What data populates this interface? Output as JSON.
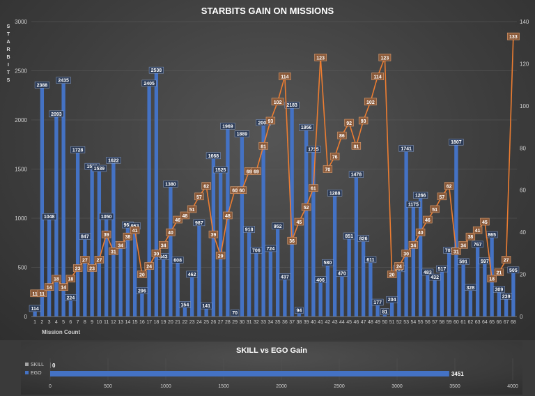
{
  "chart_data": [
    {
      "type": "bar",
      "title": "STARBITS GAIN ON MISSIONS",
      "ylabel": "STARBITS",
      "xlabel": "Mission Count",
      "ylim": [
        0,
        3000
      ],
      "y2lim": [
        0,
        140
      ],
      "yticks": [
        0,
        500,
        1000,
        1500,
        2000,
        2500,
        3000
      ],
      "y2ticks": [
        0,
        20,
        40,
        60,
        80,
        100,
        120,
        140
      ],
      "categories": [
        "1",
        "2",
        "3",
        "4",
        "5",
        "6",
        "7",
        "8",
        "9",
        "10",
        "11",
        "12",
        "13",
        "14",
        "15",
        "16",
        "17",
        "18",
        "19",
        "20",
        "21",
        "22",
        "23",
        "24",
        "25",
        "26",
        "27",
        "28",
        "29",
        "30",
        "31",
        "32",
        "33",
        "34",
        "35",
        "36",
        "37",
        "38",
        "39",
        "40",
        "41",
        "42",
        "43",
        "44",
        "45",
        "46",
        "47",
        "48",
        "49",
        "50",
        "51",
        "52",
        "53",
        "54",
        "55",
        "56",
        "57",
        "58",
        "59",
        "60",
        "61",
        "62",
        "63",
        "64",
        "65",
        "66",
        "67",
        "68"
      ],
      "series": [
        {
          "type": "bar",
          "axis": "left",
          "color": "#4472c4",
          "values": [
            114,
            2388,
            1048,
            2093,
            2435,
            224,
            1728,
            847,
            1559,
            1539,
            1050,
            1622,
            760,
            964,
            953,
            296,
            2405,
            2538,
            643,
            1380,
            608,
            154,
            462,
            987,
            141,
            1668,
            1525,
            1969,
            70,
            1889,
            918,
            706,
            2004,
            724,
            952,
            437,
            2183,
            94,
            1956,
            1735,
            406,
            580,
            1288,
            470,
            851,
            1478,
            826,
            611,
            177,
            81,
            204,
            519,
            1741,
            1175,
            1266,
            483,
            432,
            517,
            707,
            1807,
            591,
            328,
            767,
            597,
            865,
            309,
            239,
            505
          ],
          "labels": [
            "114",
            "2388",
            "1048",
            "2093",
            "2435",
            "224",
            "1728",
            "847",
            "1559",
            "1539",
            "1050",
            "1622",
            "760",
            "964",
            "953",
            "296",
            "2405",
            "2538",
            "643",
            "1380",
            "608",
            "154",
            "462",
            "987",
            "141",
            "1668",
            "1525",
            "1969",
            "70",
            "1889",
            "918",
            "706",
            "2004",
            "724",
            "952",
            "437",
            "2183",
            "94",
            "1956",
            "1735",
            "406",
            "580",
            "1288",
            "470",
            "851",
            "1478",
            "826",
            "611",
            "177",
            "81",
            "204",
            "519",
            "1741",
            "1175",
            "1266",
            "483",
            "432",
            "517",
            "707",
            "1807",
            "591",
            "328",
            "767",
            "597",
            "865",
            "309",
            "239",
            "505"
          ]
        },
        {
          "type": "line",
          "axis": "right",
          "color": "#ed7d31",
          "values": [
            11,
            11,
            14,
            18,
            14,
            18,
            23,
            27,
            23,
            27,
            39,
            31,
            34,
            38,
            41,
            20,
            24,
            30,
            34,
            40,
            46,
            48,
            51,
            57,
            62,
            39,
            29,
            48,
            60,
            60,
            69,
            69,
            81,
            93,
            102,
            114,
            36,
            45,
            52,
            61,
            123,
            70,
            76,
            86,
            92,
            81,
            93,
            102,
            114,
            123,
            20,
            24,
            30,
            34,
            40,
            46,
            51,
            57,
            62,
            31,
            34,
            38,
            41,
            45,
            18,
            21,
            27,
            133
          ],
          "labels": [
            "11",
            "11",
            "14",
            "18",
            "14",
            "18",
            "23",
            "27",
            "23",
            "27",
            "39",
            "31",
            "34",
            "38",
            "41",
            "20",
            "24",
            "30",
            "34",
            "40",
            "46",
            "48",
            "51",
            "57",
            "62",
            "39",
            "29",
            "48",
            "60",
            "60",
            "69",
            "69",
            "81",
            "93",
            "102",
            "114",
            "36",
            "45",
            "52",
            "61",
            "123",
            "70",
            "76",
            "86",
            "92",
            "81",
            "93",
            "102",
            "114",
            "123",
            "20",
            "24",
            "30",
            "34",
            "40",
            "46",
            "51",
            "57",
            "62",
            "31",
            "34",
            "38",
            "41",
            "45",
            "18",
            "21",
            "27",
            "133"
          ]
        }
      ]
    },
    {
      "type": "bar",
      "orientation": "horizontal",
      "title": "SKILL vs EGO Gain",
      "xlim": [
        0,
        4000
      ],
      "xticks": [
        0,
        500,
        1000,
        1500,
        2000,
        2500,
        3000,
        3500,
        4000
      ],
      "legend_position": "left",
      "categories": [
        "SKILL",
        "EGO"
      ],
      "values": [
        0,
        3451
      ],
      "labels": [
        "0",
        "3451"
      ],
      "colors": {
        "SKILL": "#a5a5a5",
        "EGO": "#4472c4"
      }
    }
  ]
}
